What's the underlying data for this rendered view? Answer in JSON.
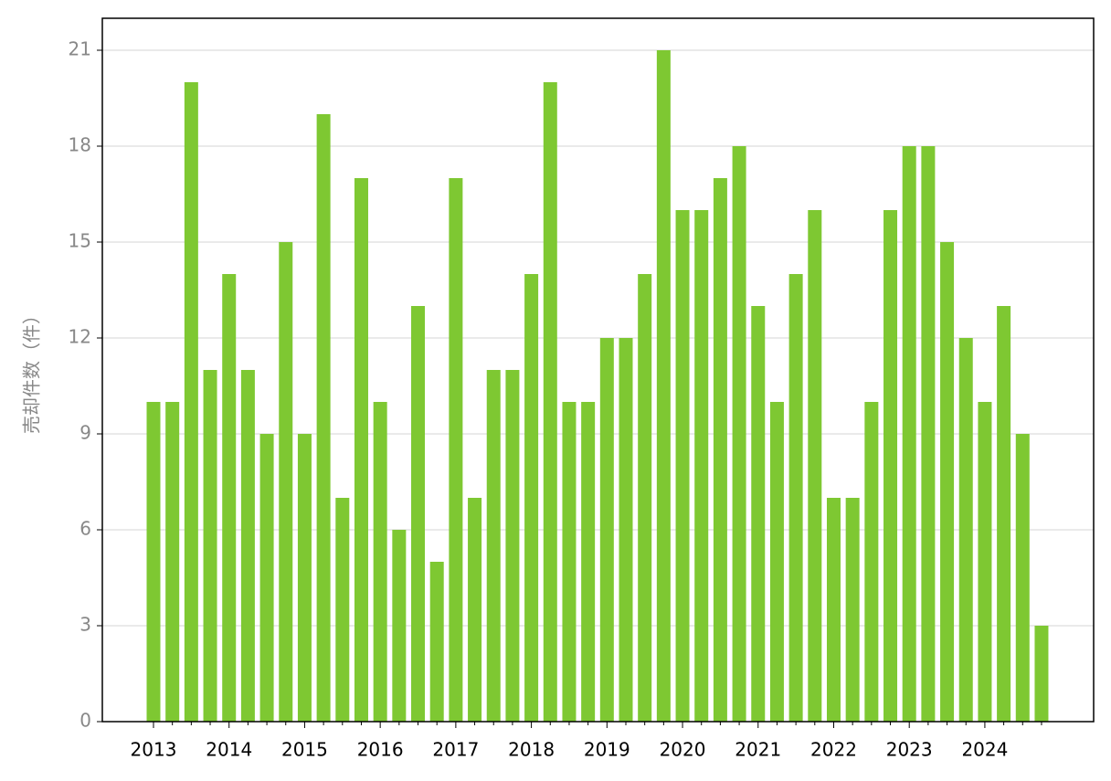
{
  "chart_data": {
    "type": "bar",
    "y_label": "売却件数（件）",
    "categories": [
      "2013",
      null,
      null,
      null,
      "2014",
      null,
      null,
      null,
      "2015",
      null,
      null,
      null,
      "2016",
      null,
      null,
      null,
      "2017",
      null,
      null,
      null,
      "2018",
      null,
      null,
      null,
      "2019",
      null,
      null,
      null,
      "2020",
      null,
      null,
      null,
      "2021",
      null,
      null,
      null,
      "2022",
      null,
      null,
      null,
      "2023",
      null,
      null,
      null,
      "2024",
      null,
      null,
      null
    ],
    "values": [
      10,
      10,
      20,
      11,
      14,
      11,
      9,
      15,
      9,
      19,
      7,
      17,
      10,
      6,
      13,
      5,
      17,
      7,
      11,
      11,
      14,
      20,
      10,
      10,
      12,
      12,
      14,
      21,
      16,
      16,
      17,
      18,
      13,
      10,
      14,
      16,
      7,
      7,
      10,
      16,
      18,
      18,
      15,
      12,
      10,
      13,
      9,
      3
    ],
    "color": "#7ec832",
    "ylim": [
      0,
      22
    ],
    "yticks": [
      0,
      3,
      6,
      9,
      12,
      15,
      18,
      21
    ],
    "grid": true
  }
}
